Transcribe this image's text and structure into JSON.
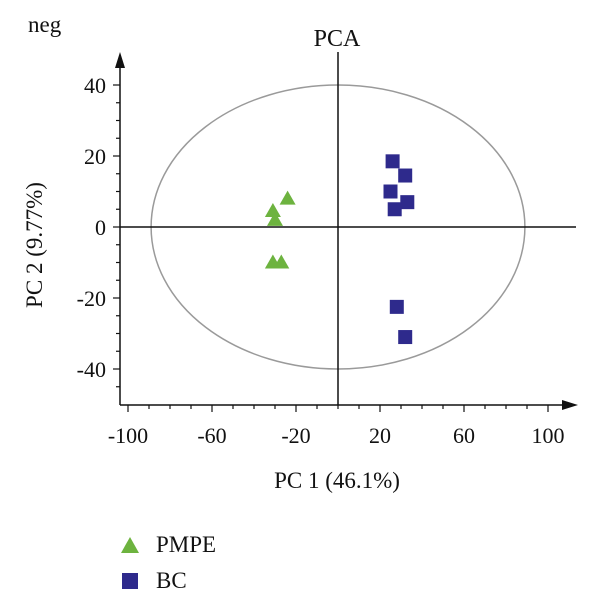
{
  "chart_data": {
    "type": "scatter",
    "corner_label": "neg",
    "title": "PCA",
    "xlabel": "PC 1 (46.1%)",
    "ylabel": "PC 2 (9.77%)",
    "xlim": [
      -110,
      110
    ],
    "ylim": [
      -50,
      50
    ],
    "xticks": [
      -100,
      -60,
      -20,
      20,
      60,
      100
    ],
    "yticks": [
      -40,
      -20,
      0,
      20,
      40
    ],
    "grid": false,
    "legend_position": "bottom-left",
    "confidence_ellipse": {
      "center": [
        0,
        0
      ],
      "semi_axes": [
        89,
        40
      ],
      "color": "#9a9a9a"
    },
    "series": [
      {
        "name": "PMPE",
        "marker": "triangle",
        "color": "#6db33f",
        "points": [
          [
            -24,
            8
          ],
          [
            -31,
            4.5
          ],
          [
            -30,
            2
          ],
          [
            -31,
            -10
          ],
          [
            -27,
            -10
          ]
        ]
      },
      {
        "name": "BC",
        "marker": "square",
        "color": "#2e2a8c",
        "points": [
          [
            26,
            18.5
          ],
          [
            32,
            14.5
          ],
          [
            25,
            10
          ],
          [
            33,
            7
          ],
          [
            27,
            5
          ],
          [
            28,
            -22.5
          ],
          [
            32,
            -31
          ]
        ]
      }
    ]
  }
}
